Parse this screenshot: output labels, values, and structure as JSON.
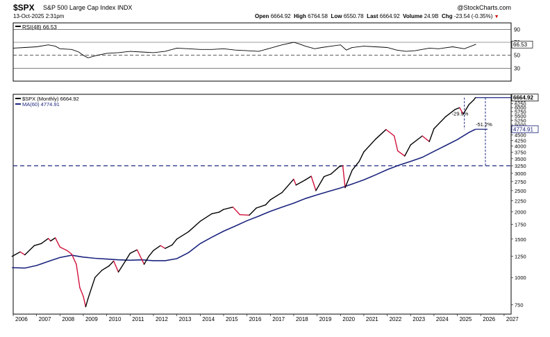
{
  "header": {
    "ticker": "$SPX",
    "index_name": "S&P 500 Large Cap Index",
    "exchange": "INDX",
    "brand": "@StockCharts.com",
    "date": "13-Oct-2025 2:31pm",
    "quote": {
      "open_label": "Open",
      "open": "6664.92",
      "high_label": "High",
      "high": "6764.58",
      "low_label": "Low",
      "low": "6550.78",
      "last_label": "Last",
      "last": "6664.92",
      "volume_label": "Volume",
      "volume": "24.9B",
      "chg_label": "Chg",
      "chg": "-23.54 (-0.35%)"
    }
  },
  "chart_data": [
    {
      "type": "line",
      "panel": "rsi",
      "legend": "RSI(48) 66.53",
      "yticks": [
        90,
        70,
        50,
        30
      ],
      "ylim": [
        10,
        100
      ],
      "reference_lines": [
        70,
        50
      ],
      "last_value_label": "66.53",
      "last_value": 66.53,
      "series": [
        {
          "name": "RSI(48)",
          "color": "#000000",
          "x": [
            2006.0,
            2006.5,
            2007.0,
            2007.5,
            2007.8,
            2008.0,
            2008.5,
            2008.8,
            2009.0,
            2009.2,
            2009.6,
            2010.0,
            2010.5,
            2011.0,
            2011.5,
            2012.0,
            2012.5,
            2013.0,
            2013.5,
            2014.0,
            2014.5,
            2015.0,
            2015.5,
            2016.0,
            2016.5,
            2017.0,
            2017.5,
            2018.0,
            2018.2,
            2018.5,
            2018.9,
            2019.2,
            2019.6,
            2020.0,
            2020.25,
            2020.5,
            2021.0,
            2021.5,
            2022.0,
            2022.4,
            2022.8,
            2023.2,
            2023.8,
            2024.2,
            2024.8,
            2025.3,
            2025.8
          ],
          "y": [
            61,
            62,
            63,
            66,
            64,
            60,
            59,
            55,
            50,
            46,
            50,
            53,
            54,
            56,
            55,
            54,
            56,
            61,
            60,
            59,
            59,
            60,
            58,
            57,
            56,
            61,
            66,
            70,
            68,
            64,
            60,
            62,
            64,
            66,
            58,
            62,
            64,
            63,
            62,
            58,
            56,
            57,
            61,
            60,
            63,
            60,
            67
          ]
        }
      ]
    },
    {
      "type": "line",
      "panel": "price",
      "title": "S&P 500 Large Cap Index",
      "scale": "log",
      "x_axis": {
        "ticks": [
          "2006",
          "2007",
          "2008",
          "2009",
          "2010",
          "2011",
          "2012",
          "2013",
          "2014",
          "2015",
          "2016",
          "2017",
          "2018",
          "2019",
          "2020",
          "2021",
          "2022",
          "2023",
          "2024",
          "2025",
          "2026",
          "2027"
        ],
        "range": [
          2006,
          2027.3
        ]
      },
      "y_axis": {
        "ticks": [
          750,
          1000,
          1250,
          1500,
          1750,
          2000,
          2250,
          2500,
          2750,
          3000,
          3250,
          3500,
          3750,
          4000,
          4250,
          4500,
          4750,
          5000,
          5250,
          5500,
          5750,
          6000,
          6250,
          6500
        ],
        "ylim": [
          680,
          6900
        ]
      },
      "legend": [
        {
          "label": "$SPX (Monthly) 6664.92",
          "color": "#000000"
        },
        {
          "label": "MA(60) 4774.91",
          "color": "#1a237e"
        }
      ],
      "last_value_labels": [
        {
          "text": "6664.92",
          "value": 6664.92
        },
        {
          "text": "4774.91",
          "value": 4774.91
        }
      ],
      "horizontal_lines": [
        {
          "value": 6664.92,
          "style": "solid",
          "color": "#1a237e"
        },
        {
          "value": 3250,
          "style": "dashed",
          "color": "#1a237e"
        }
      ],
      "annotations": [
        {
          "text": "-29.9%",
          "x": 2025.3
        },
        {
          "text": "-51.2%",
          "x": 2026.2
        }
      ],
      "series": [
        {
          "name": "$SPX (Monthly)",
          "color": "#000000",
          "down_color": "#d0103a",
          "x": [
            2005.95,
            2006.3,
            2006.5,
            2006.9,
            2007.2,
            2007.5,
            2007.6,
            2007.8,
            2008.0,
            2008.3,
            2008.5,
            2008.7,
            2008.85,
            2009.0,
            2009.1,
            2009.2,
            2009.5,
            2009.8,
            2010.1,
            2010.3,
            2010.5,
            2010.8,
            2011.0,
            2011.3,
            2011.6,
            2011.8,
            2012.0,
            2012.3,
            2012.5,
            2012.8,
            2013.0,
            2013.5,
            2014.0,
            2014.5,
            2014.8,
            2015.0,
            2015.4,
            2015.7,
            2016.1,
            2016.4,
            2016.8,
            2017.0,
            2017.5,
            2018.0,
            2018.1,
            2018.5,
            2018.75,
            2018.95,
            2019.3,
            2019.6,
            2019.95,
            2020.1,
            2020.2,
            2020.5,
            2020.8,
            2021.0,
            2021.5,
            2021.95,
            2022.3,
            2022.45,
            2022.75,
            2023.0,
            2023.5,
            2023.8,
            2024.0,
            2024.5,
            2024.9,
            2025.1,
            2025.25,
            2025.5,
            2025.7,
            2025.78
          ],
          "y": [
            1250,
            1310,
            1270,
            1400,
            1430,
            1510,
            1470,
            1520,
            1380,
            1330,
            1280,
            1150,
            900,
            820,
            735,
            800,
            1000,
            1080,
            1130,
            1190,
            1060,
            1190,
            1290,
            1340,
            1150,
            1250,
            1330,
            1400,
            1360,
            1410,
            1500,
            1620,
            1810,
            1960,
            1990,
            2050,
            2100,
            1940,
            1930,
            2080,
            2150,
            2270,
            2450,
            2820,
            2650,
            2800,
            2910,
            2500,
            2900,
            2980,
            3220,
            3250,
            2580,
            3100,
            3400,
            3760,
            4300,
            4760,
            4450,
            3800,
            3600,
            4050,
            4450,
            4190,
            4800,
            5450,
            5880,
            5990,
            5600,
            6200,
            6500,
            6664.92
          ]
        },
        {
          "name": "MA(60)",
          "color": "#1a237e",
          "x": [
            2005.95,
            2006.5,
            2007.0,
            2007.5,
            2008.0,
            2008.5,
            2009.0,
            2009.5,
            2010.0,
            2010.5,
            2011.0,
            2011.5,
            2012.0,
            2012.5,
            2013.0,
            2013.5,
            2014.0,
            2014.5,
            2015.0,
            2015.5,
            2016.0,
            2016.5,
            2017.0,
            2017.5,
            2018.0,
            2018.5,
            2019.0,
            2019.5,
            2020.0,
            2020.5,
            2021.0,
            2021.5,
            2022.0,
            2022.5,
            2023.0,
            2023.5,
            2024.0,
            2024.5,
            2025.0,
            2025.5,
            2025.78
          ],
          "y": [
            1110,
            1105,
            1135,
            1185,
            1235,
            1265,
            1240,
            1225,
            1215,
            1205,
            1200,
            1205,
            1195,
            1195,
            1220,
            1300,
            1430,
            1530,
            1630,
            1720,
            1820,
            1910,
            2010,
            2100,
            2190,
            2300,
            2390,
            2480,
            2570,
            2680,
            2800,
            2950,
            3120,
            3270,
            3400,
            3550,
            3780,
            4020,
            4280,
            4620,
            4774.91
          ]
        }
      ]
    }
  ]
}
